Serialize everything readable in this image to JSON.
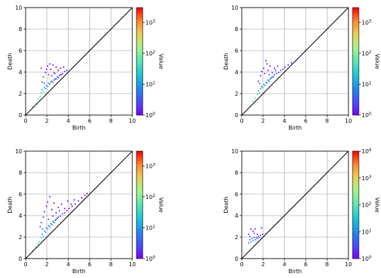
{
  "chart_data": [
    {
      "type": "heatmap",
      "panel": "top-left",
      "xlabel": "Birth",
      "ylabel": "Death",
      "xlim": [
        0,
        10
      ],
      "ylim": [
        0,
        10
      ],
      "xticks": [
        0,
        2,
        4,
        6,
        8,
        10
      ],
      "yticks": [
        0,
        2,
        4,
        6,
        8,
        10
      ],
      "grid": true,
      "diagonal": true,
      "colorbar": {
        "label": "Value",
        "scale": "log",
        "min": 1,
        "max": 3000,
        "ticks": [
          {
            "base": "10",
            "exp": "0",
            "value": 1
          },
          {
            "base": "10",
            "exp": "1",
            "value": 10
          },
          {
            "base": "10",
            "exp": "2",
            "value": 100
          },
          {
            "base": "10",
            "exp": "3",
            "value": 1000
          }
        ]
      },
      "cells": [
        [
          0.6,
          0.7,
          60
        ],
        [
          0.9,
          1.0,
          80
        ],
        [
          1.1,
          1.4,
          45
        ],
        [
          1.3,
          1.7,
          35
        ],
        [
          1.4,
          2.0,
          20
        ],
        [
          1.5,
          2.3,
          12
        ],
        [
          1.6,
          2.1,
          25
        ],
        [
          1.7,
          2.5,
          10
        ],
        [
          1.8,
          2.4,
          14
        ],
        [
          1.9,
          2.7,
          9
        ],
        [
          2.0,
          2.6,
          11
        ],
        [
          2.1,
          2.9,
          6
        ],
        [
          2.2,
          2.8,
          8
        ],
        [
          2.3,
          3.0,
          7
        ],
        [
          2.4,
          3.1,
          5
        ],
        [
          2.5,
          3.0,
          6
        ],
        [
          2.6,
          3.2,
          4
        ],
        [
          2.7,
          3.3,
          5
        ],
        [
          2.8,
          3.3,
          4
        ],
        [
          2.9,
          3.5,
          3
        ],
        [
          3.0,
          3.4,
          4
        ],
        [
          3.1,
          3.6,
          3
        ],
        [
          3.2,
          3.7,
          2
        ],
        [
          3.3,
          3.7,
          3
        ],
        [
          3.4,
          3.8,
          2
        ],
        [
          3.6,
          4.0,
          2
        ],
        [
          3.8,
          4.1,
          1
        ],
        [
          1.5,
          3.0,
          2
        ],
        [
          1.6,
          3.5,
          2
        ],
        [
          1.8,
          3.9,
          1
        ],
        [
          1.9,
          4.2,
          1
        ],
        [
          2.0,
          4.5,
          1
        ],
        [
          2.1,
          3.7,
          2
        ],
        [
          2.2,
          4.7,
          1
        ],
        [
          2.3,
          4.2,
          1
        ],
        [
          2.5,
          4.6,
          1
        ],
        [
          2.6,
          3.9,
          2
        ],
        [
          2.8,
          4.4,
          1
        ],
        [
          3.0,
          4.1,
          1
        ],
        [
          3.2,
          4.3,
          1
        ],
        [
          3.5,
          4.4,
          1
        ],
        [
          1.4,
          4.3,
          1
        ],
        [
          1.7,
          2.9,
          3
        ],
        [
          2.4,
          3.6,
          3
        ],
        [
          2.7,
          3.8,
          2
        ]
      ]
    },
    {
      "type": "heatmap",
      "panel": "top-right",
      "xlabel": "Birth",
      "ylabel": "Death",
      "xlim": [
        0,
        10
      ],
      "ylim": [
        0,
        10
      ],
      "xticks": [
        0,
        2,
        4,
        6,
        8,
        10
      ],
      "yticks": [
        0,
        2,
        4,
        6,
        8,
        10
      ],
      "grid": true,
      "diagonal": true,
      "colorbar": {
        "label": "Value",
        "scale": "log",
        "min": 1,
        "max": 3000,
        "ticks": [
          {
            "base": "10",
            "exp": "0",
            "value": 1
          },
          {
            "base": "10",
            "exp": "1",
            "value": 10
          },
          {
            "base": "10",
            "exp": "2",
            "value": 100
          },
          {
            "base": "10",
            "exp": "3",
            "value": 1000
          }
        ]
      },
      "cells": [
        [
          0.7,
          0.8,
          60
        ],
        [
          1.0,
          1.2,
          70
        ],
        [
          1.2,
          1.5,
          40
        ],
        [
          1.4,
          1.9,
          25
        ],
        [
          1.5,
          2.2,
          15
        ],
        [
          1.6,
          2.0,
          22
        ],
        [
          1.7,
          2.4,
          12
        ],
        [
          1.8,
          2.6,
          9
        ],
        [
          1.9,
          2.5,
          11
        ],
        [
          2.0,
          2.8,
          8
        ],
        [
          2.1,
          2.7,
          9
        ],
        [
          2.2,
          3.0,
          6
        ],
        [
          2.3,
          2.9,
          7
        ],
        [
          2.4,
          3.2,
          5
        ],
        [
          2.5,
          3.1,
          6
        ],
        [
          2.6,
          3.3,
          4
        ],
        [
          2.7,
          3.4,
          5
        ],
        [
          2.8,
          3.5,
          4
        ],
        [
          2.9,
          3.5,
          3
        ],
        [
          3.0,
          3.7,
          3
        ],
        [
          3.2,
          3.8,
          3
        ],
        [
          3.4,
          3.9,
          2
        ],
        [
          3.6,
          4.1,
          2
        ],
        [
          3.8,
          4.2,
          2
        ],
        [
          4.0,
          4.4,
          1
        ],
        [
          4.3,
          4.6,
          1
        ],
        [
          4.6,
          4.8,
          1
        ],
        [
          1.5,
          3.1,
          2
        ],
        [
          1.7,
          3.6,
          2
        ],
        [
          1.8,
          4.0,
          1
        ],
        [
          2.0,
          4.3,
          1
        ],
        [
          2.1,
          3.8,
          2
        ],
        [
          2.3,
          4.7,
          1
        ],
        [
          2.4,
          4.1,
          1
        ],
        [
          2.6,
          4.5,
          1
        ],
        [
          2.8,
          3.9,
          2
        ],
        [
          3.0,
          4.3,
          1
        ],
        [
          3.3,
          4.5,
          1
        ],
        [
          1.6,
          2.9,
          3
        ],
        [
          2.5,
          3.7,
          2
        ],
        [
          2.2,
          5.0,
          1
        ],
        [
          3.1,
          4.1,
          1
        ]
      ]
    },
    {
      "type": "heatmap",
      "panel": "bottom-left",
      "xlabel": "Birth",
      "ylabel": "Death",
      "xlim": [
        0,
        10
      ],
      "ylim": [
        0,
        10
      ],
      "xticks": [
        0,
        2,
        4,
        6,
        8,
        10
      ],
      "yticks": [
        0,
        2,
        4,
        6,
        8,
        10
      ],
      "grid": true,
      "diagonal": true,
      "colorbar": {
        "label": "Value",
        "scale": "log",
        "min": 1,
        "max": 3000,
        "ticks": [
          {
            "base": "10",
            "exp": "0",
            "value": 1
          },
          {
            "base": "10",
            "exp": "1",
            "value": 10
          },
          {
            "base": "10",
            "exp": "2",
            "value": 100
          },
          {
            "base": "10",
            "exp": "3",
            "value": 1000
          }
        ]
      },
      "cells": [
        [
          0.6,
          0.7,
          70
        ],
        [
          0.9,
          1.0,
          60
        ],
        [
          1.1,
          1.3,
          45
        ],
        [
          1.2,
          1.5,
          30
        ],
        [
          1.4,
          1.9,
          20
        ],
        [
          1.5,
          2.2,
          14
        ],
        [
          1.6,
          2.0,
          22
        ],
        [
          1.7,
          2.5,
          10
        ],
        [
          1.8,
          2.4,
          12
        ],
        [
          1.9,
          2.8,
          8
        ],
        [
          2.0,
          2.7,
          10
        ],
        [
          2.1,
          3.0,
          6
        ],
        [
          2.2,
          2.9,
          8
        ],
        [
          2.3,
          3.2,
          5
        ],
        [
          2.4,
          3.1,
          6
        ],
        [
          2.5,
          3.4,
          4
        ],
        [
          2.6,
          3.3,
          5
        ],
        [
          2.7,
          3.5,
          4
        ],
        [
          2.8,
          3.6,
          3
        ],
        [
          2.9,
          3.7,
          3
        ],
        [
          3.0,
          3.8,
          3
        ],
        [
          3.2,
          3.9,
          2
        ],
        [
          3.4,
          4.1,
          2
        ],
        [
          3.6,
          4.2,
          2
        ],
        [
          3.8,
          4.4,
          2
        ],
        [
          4.0,
          4.6,
          1
        ],
        [
          4.3,
          4.8,
          1
        ],
        [
          4.6,
          5.0,
          1
        ],
        [
          4.9,
          5.3,
          1
        ],
        [
          5.2,
          5.6,
          1
        ],
        [
          5.5,
          5.8,
          1
        ],
        [
          5.7,
          6.0,
          1
        ],
        [
          1.4,
          3.3,
          2
        ],
        [
          1.6,
          3.8,
          2
        ],
        [
          1.7,
          4.3,
          1
        ],
        [
          1.9,
          4.8,
          1
        ],
        [
          2.0,
          5.2,
          1
        ],
        [
          2.2,
          5.7,
          1
        ],
        [
          2.4,
          4.5,
          1
        ],
        [
          2.6,
          5.1,
          1
        ],
        [
          2.8,
          4.2,
          2
        ],
        [
          3.0,
          4.7,
          1
        ],
        [
          3.3,
          5.0,
          1
        ],
        [
          3.6,
          4.6,
          1
        ],
        [
          3.9,
          5.3,
          1
        ],
        [
          4.2,
          5.0,
          1
        ],
        [
          1.5,
          2.7,
          3
        ],
        [
          2.5,
          3.9,
          2
        ],
        [
          2.1,
          3.6,
          3
        ],
        [
          3.1,
          4.4,
          2
        ],
        [
          1.3,
          2.9,
          2
        ],
        [
          4.5,
          5.4,
          1
        ]
      ]
    },
    {
      "type": "heatmap",
      "panel": "bottom-right",
      "xlabel": "Birth",
      "ylabel": "Death",
      "xlim": [
        0,
        10
      ],
      "ylim": [
        0,
        10
      ],
      "xticks": [
        0,
        2,
        4,
        6,
        8,
        10
      ],
      "yticks": [
        0,
        2,
        4,
        6,
        8,
        10
      ],
      "grid": true,
      "diagonal": true,
      "colorbar": {
        "label": "Value",
        "scale": "log",
        "min": 1,
        "max": 10000,
        "ticks": [
          {
            "base": "10",
            "exp": "0",
            "value": 1
          },
          {
            "base": "10",
            "exp": "1",
            "value": 10
          },
          {
            "base": "10",
            "exp": "2",
            "value": 100
          },
          {
            "base": "10",
            "exp": "3",
            "value": 1000
          },
          {
            "base": "10",
            "exp": "4",
            "value": 10000
          }
        ]
      },
      "cells": [
        [
          0.6,
          1.4,
          8
        ],
        [
          0.7,
          1.7,
          5
        ],
        [
          0.8,
          1.5,
          12
        ],
        [
          0.9,
          1.8,
          6
        ],
        [
          1.0,
          1.6,
          10
        ],
        [
          1.1,
          1.9,
          4
        ],
        [
          1.2,
          1.7,
          7
        ],
        [
          1.3,
          1.9,
          5
        ],
        [
          1.4,
          1.8,
          4
        ],
        [
          1.5,
          2.0,
          3
        ],
        [
          1.6,
          1.9,
          3
        ],
        [
          1.7,
          2.1,
          2
        ],
        [
          0.6,
          2.2,
          2
        ],
        [
          0.8,
          2.7,
          1
        ],
        [
          1.0,
          2.5,
          1
        ],
        [
          1.2,
          2.7,
          1
        ],
        [
          1.4,
          2.2,
          1
        ],
        [
          1.8,
          2.8,
          1
        ],
        [
          0.7,
          2.0,
          3
        ],
        [
          1.1,
          2.3,
          2
        ],
        [
          1.9,
          2.2,
          1
        ]
      ]
    }
  ]
}
